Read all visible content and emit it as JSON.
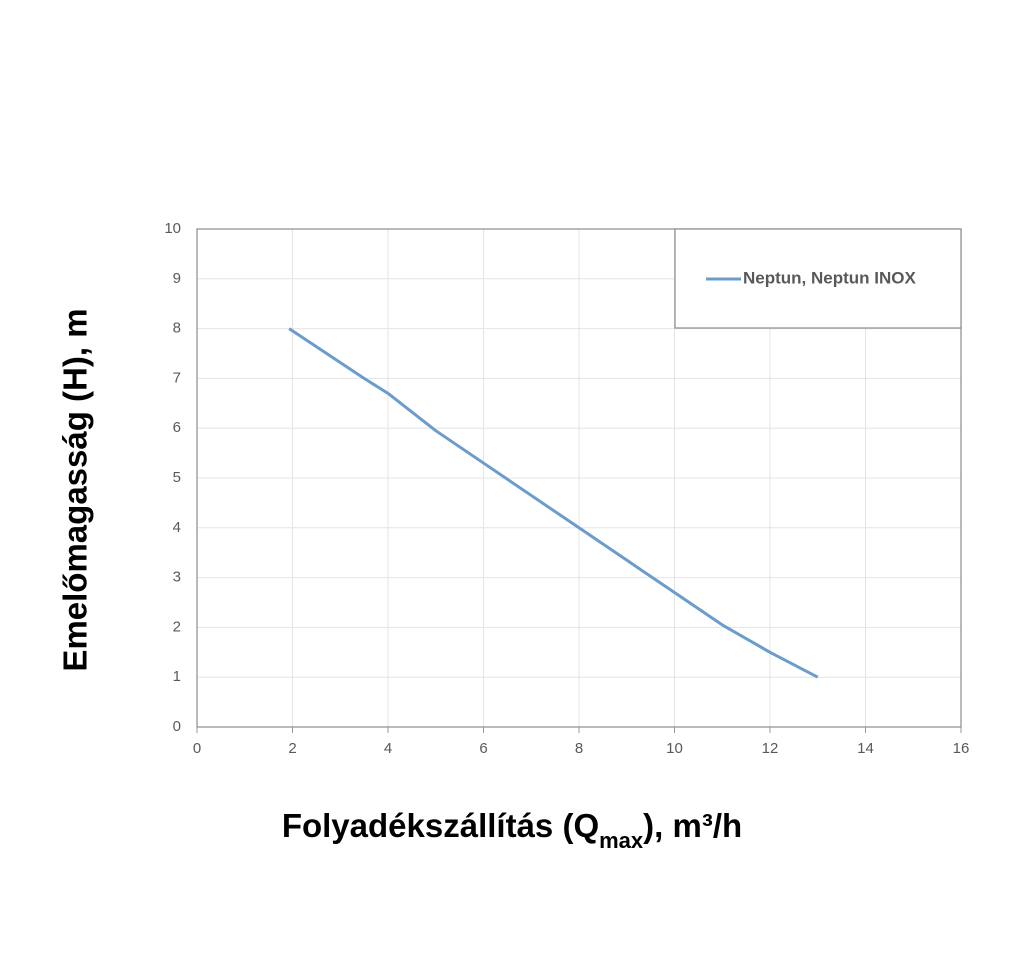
{
  "chart_data": {
    "type": "line",
    "x_label": [
      "Folyadékszállítás (Q",
      "max",
      "), m³/h"
    ],
    "y_label": "Emelőmagasság (H), m",
    "x": [
      1.93,
      3.5,
      4,
      5,
      6,
      7,
      8,
      9,
      10,
      11,
      12,
      13
    ],
    "series": [
      {
        "name": "Neptun, Neptun INOX",
        "color": "#6a9ccc",
        "values": [
          8,
          7.0,
          6.7,
          5.95,
          5.3,
          4.65,
          4.0,
          3.35,
          2.7,
          2.05,
          1.5,
          1.0
        ]
      }
    ],
    "xlim": [
      0,
      16
    ],
    "xticks": [
      0,
      2,
      4,
      6,
      8,
      10,
      12,
      14,
      16
    ],
    "ylim": [
      0,
      10
    ],
    "yticks": [
      0,
      1,
      2,
      3,
      4,
      5,
      6,
      7,
      8,
      9,
      10
    ],
    "grid": true,
    "legend": "top-right"
  }
}
